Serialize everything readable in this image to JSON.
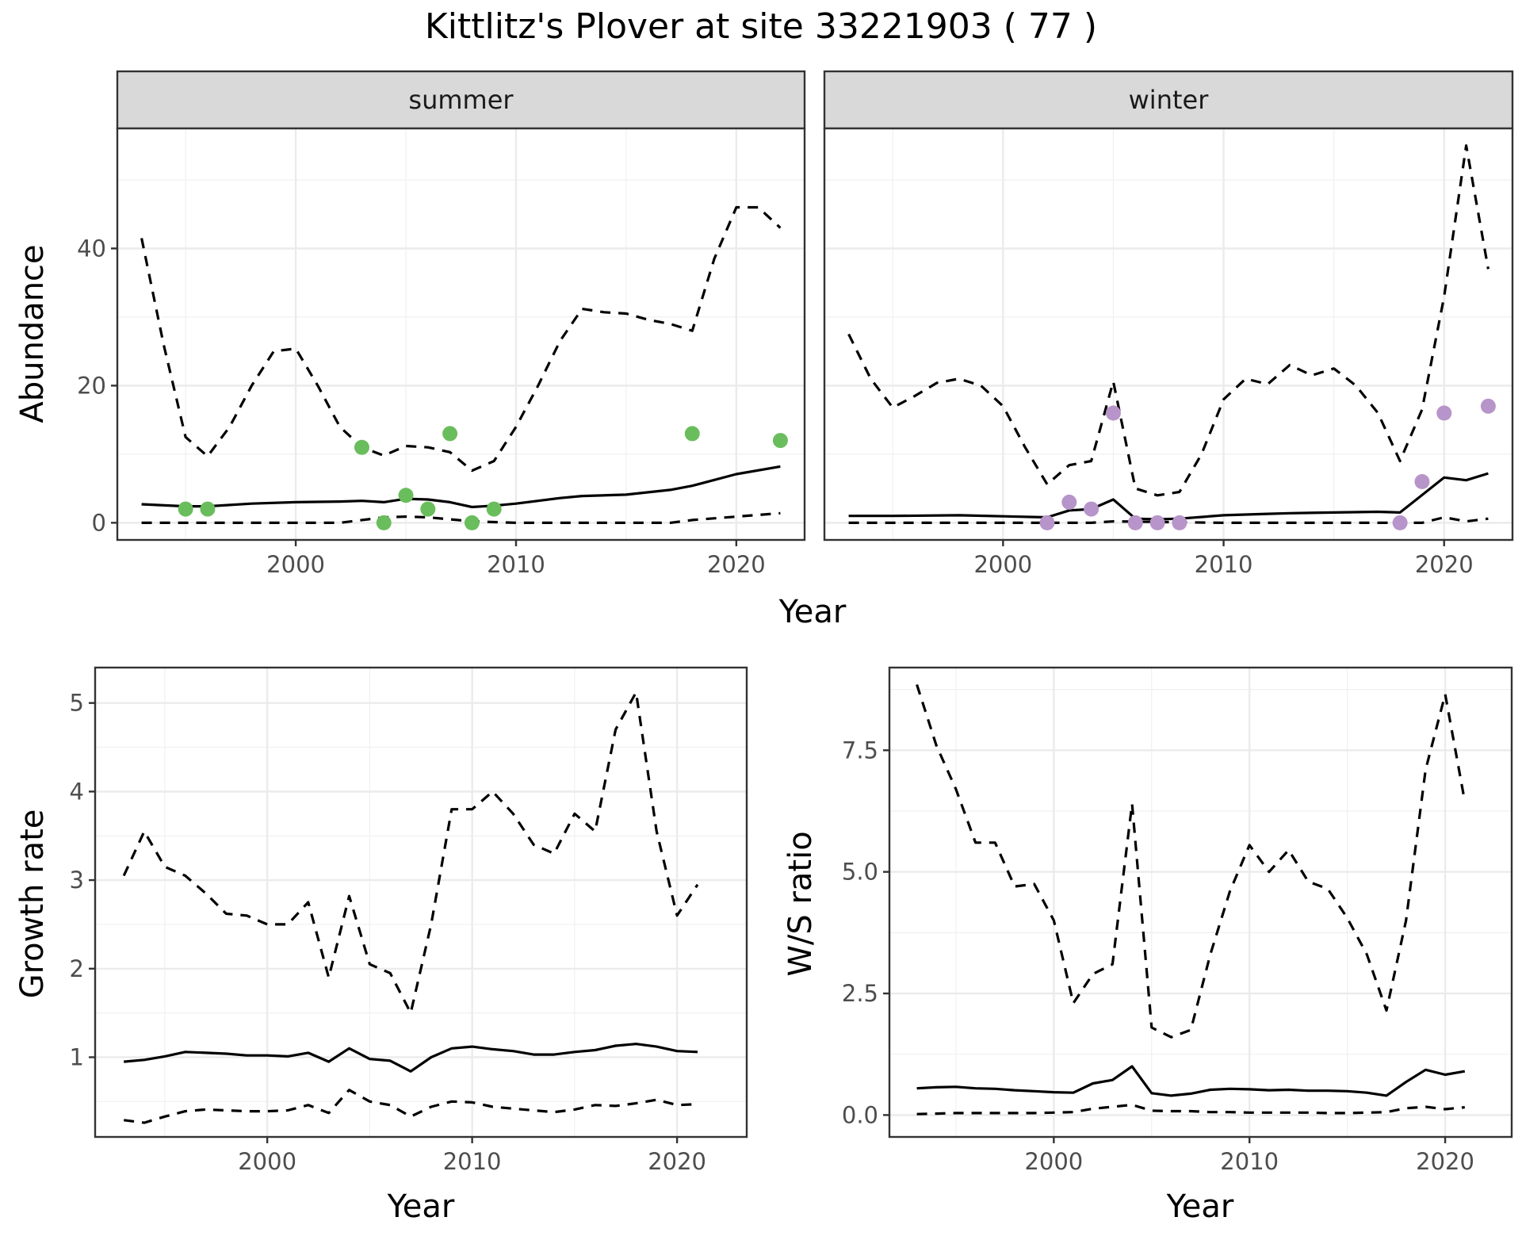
{
  "title": "Kittlitz's Plover at site 33221903 ( 77 )",
  "shared_xlabel": "Year",
  "colors": {
    "summer_points": "#6abd5c",
    "winter_points": "#b794c9",
    "strip_fill": "#d9d9d9",
    "lines": "#000000"
  },
  "chart_data": [
    {
      "type": "line",
      "panel": "summer",
      "strip_label": "summer",
      "xlabel": "",
      "ylabel": "Abundance",
      "xlim": [
        1991.9,
        2023.1
      ],
      "ylim": [
        -2.5,
        57.5
      ],
      "x_ticks": [
        2000,
        2010,
        2020
      ],
      "y_ticks": [
        0,
        20,
        40
      ],
      "grid": true,
      "series": [
        {
          "role": "mean",
          "style": "solid",
          "x": [
            1993,
            1995,
            1996,
            1998,
            2000,
            2002,
            2003,
            2004,
            2005,
            2006,
            2007,
            2008,
            2009,
            2010,
            2012,
            2013,
            2015,
            2017,
            2018,
            2020,
            2022
          ],
          "y": [
            2.7,
            2.4,
            2.4,
            2.8,
            3.0,
            3.1,
            3.2,
            3.0,
            3.5,
            3.4,
            3.0,
            2.3,
            2.5,
            2.8,
            3.6,
            3.9,
            4.1,
            4.8,
            5.4,
            7.1,
            8.2
          ]
        },
        {
          "role": "upper",
          "style": "dashed",
          "x": [
            1993,
            1994,
            1995,
            1996,
            1997,
            1998,
            1999,
            2000,
            2001,
            2002,
            2003,
            2004,
            2005,
            2006,
            2007,
            2008,
            2009,
            2010,
            2011,
            2012,
            2013,
            2014,
            2015,
            2016,
            2017,
            2018,
            2019,
            2020,
            2021,
            2022
          ],
          "y": [
            41.5,
            26,
            12.5,
            9.7,
            14,
            20,
            25,
            25.4,
            20,
            14,
            11,
            9.8,
            11.2,
            11,
            10.3,
            7.6,
            9,
            14,
            20,
            26.5,
            31.2,
            30.7,
            30.5,
            29.6,
            29,
            28,
            38.5,
            46,
            46,
            43
          ]
        },
        {
          "role": "lower",
          "style": "dashed",
          "x": [
            1993,
            2002,
            2004,
            2005,
            2006,
            2007,
            2008,
            2010,
            2017,
            2018,
            2020,
            2022
          ],
          "y": [
            0,
            0,
            0.8,
            0.9,
            0.8,
            0.5,
            0.2,
            0,
            0,
            0.4,
            0.9,
            1.4
          ]
        }
      ],
      "points": {
        "x": [
          1995,
          1996,
          2003,
          2004,
          2005,
          2006,
          2007,
          2008,
          2009,
          2018,
          2022
        ],
        "y": [
          2,
          2,
          11,
          0,
          4,
          2,
          13,
          0,
          2,
          13,
          12
        ]
      }
    },
    {
      "type": "line",
      "panel": "winter",
      "strip_label": "winter",
      "xlabel": "",
      "ylabel": "",
      "xlim": [
        1991.9,
        2023.1
      ],
      "ylim": [
        -2.5,
        57.5
      ],
      "x_ticks": [
        2000,
        2010,
        2020
      ],
      "y_ticks": [
        0,
        20,
        40
      ],
      "grid": true,
      "series": [
        {
          "role": "mean",
          "style": "solid",
          "x": [
            1993,
            1995,
            1998,
            2002,
            2003,
            2004,
            2005,
            2006,
            2007,
            2008,
            2010,
            2012,
            2013,
            2015,
            2017,
            2018,
            2020,
            2021,
            2022
          ],
          "y": [
            1.0,
            1.0,
            1.1,
            0.8,
            1.8,
            2.0,
            3.4,
            0.6,
            0.5,
            0.6,
            1.1,
            1.3,
            1.4,
            1.5,
            1.6,
            1.5,
            6.6,
            6.2,
            7.2
          ]
        },
        {
          "role": "upper",
          "style": "dashed",
          "x": [
            1993,
            1994,
            1995,
            1996,
            1997,
            1998,
            1999,
            2000,
            2001,
            2002,
            2003,
            2004,
            2005,
            2006,
            2007,
            2008,
            2009,
            2010,
            2011,
            2012,
            2013,
            2014,
            2015,
            2016,
            2017,
            2018,
            2019,
            2020,
            2021,
            2022
          ],
          "y": [
            27.5,
            21,
            16.8,
            18.5,
            20.4,
            21,
            20,
            17,
            11,
            5.6,
            8.4,
            9,
            20.6,
            5,
            4,
            4.5,
            10,
            18,
            21,
            20.2,
            23,
            21.5,
            22.5,
            20,
            16,
            9,
            16.5,
            33,
            55,
            37
          ]
        },
        {
          "role": "lower",
          "style": "dashed",
          "x": [
            1993,
            2004,
            2005,
            2010,
            2019,
            2020,
            2021,
            2022
          ],
          "y": [
            0,
            0,
            0.2,
            0,
            0,
            0.8,
            0.2,
            0.6
          ]
        }
      ],
      "points": {
        "x": [
          2002,
          2003,
          2004,
          2005,
          2006,
          2007,
          2008,
          2018,
          2019,
          2020,
          2022
        ],
        "y": [
          0,
          3,
          2,
          16,
          0,
          0,
          0,
          0,
          6,
          16,
          17
        ]
      }
    },
    {
      "type": "line",
      "panel": "growth",
      "xlabel": "Year",
      "ylabel": "Growth rate",
      "xlim": [
        1991.6,
        2023.4
      ],
      "ylim": [
        0.1,
        5.4
      ],
      "x_ticks": [
        2000,
        2010,
        2020
      ],
      "y_ticks": [
        1,
        2,
        3,
        4,
        5
      ],
      "grid": true,
      "series": [
        {
          "role": "mean",
          "style": "solid",
          "x": [
            1993,
            1994,
            1995,
            1996,
            1997,
            1998,
            1999,
            2000,
            2001,
            2002,
            2003,
            2004,
            2005,
            2006,
            2007,
            2008,
            2009,
            2010,
            2011,
            2012,
            2013,
            2014,
            2015,
            2016,
            2017,
            2018,
            2019,
            2020,
            2021
          ],
          "y": [
            0.95,
            0.97,
            1.01,
            1.06,
            1.05,
            1.04,
            1.02,
            1.02,
            1.01,
            1.05,
            0.95,
            1.1,
            0.98,
            0.96,
            0.84,
            1.0,
            1.1,
            1.12,
            1.09,
            1.07,
            1.03,
            1.03,
            1.06,
            1.08,
            1.13,
            1.15,
            1.12,
            1.07,
            1.06
          ]
        },
        {
          "role": "upper",
          "style": "dashed",
          "x": [
            1993,
            1994,
            1995,
            1996,
            1997,
            1998,
            1999,
            2000,
            2001,
            2002,
            2003,
            2004,
            2005,
            2006,
            2007,
            2008,
            2009,
            2010,
            2011,
            2012,
            2013,
            2014,
            2015,
            2016,
            2017,
            2018,
            2019,
            2020,
            2021
          ],
          "y": [
            3.05,
            3.55,
            3.15,
            3.05,
            2.85,
            2.62,
            2.6,
            2.5,
            2.5,
            2.75,
            1.9,
            2.82,
            2.05,
            1.95,
            1.5,
            2.5,
            3.8,
            3.8,
            4.0,
            3.75,
            3.4,
            3.3,
            3.75,
            3.55,
            4.7,
            5.12,
            3.55,
            2.6,
            2.95
          ]
        },
        {
          "role": "lower",
          "style": "dashed",
          "x": [
            1993,
            1994,
            1995,
            1996,
            1997,
            1998,
            1999,
            2000,
            2001,
            2002,
            2003,
            2004,
            2005,
            2006,
            2007,
            2008,
            2009,
            2010,
            2011,
            2012,
            2013,
            2014,
            2015,
            2016,
            2017,
            2018,
            2019,
            2020,
            2021
          ],
          "y": [
            0.29,
            0.26,
            0.33,
            0.39,
            0.41,
            0.4,
            0.39,
            0.39,
            0.4,
            0.46,
            0.37,
            0.63,
            0.5,
            0.46,
            0.33,
            0.44,
            0.5,
            0.49,
            0.44,
            0.42,
            0.4,
            0.38,
            0.41,
            0.46,
            0.45,
            0.48,
            0.52,
            0.46,
            0.47
          ]
        }
      ]
    },
    {
      "type": "line",
      "panel": "ratio",
      "xlabel": "Year",
      "ylabel": "W/S ratio",
      "xlim": [
        1991.6,
        2023.4
      ],
      "ylim": [
        -0.45,
        9.2
      ],
      "x_ticks": [
        2000,
        2010,
        2020
      ],
      "y_ticks": [
        0.0,
        2.5,
        5.0,
        7.5
      ],
      "y_tick_labels": [
        "0.0",
        "2.5",
        "5.0",
        "7.5"
      ],
      "grid": true,
      "series": [
        {
          "role": "mean",
          "style": "solid",
          "x": [
            1993,
            1994,
            1995,
            1996,
            1997,
            1998,
            1999,
            2000,
            2001,
            2002,
            2003,
            2004,
            2005,
            2006,
            2007,
            2008,
            2009,
            2010,
            2011,
            2012,
            2013,
            2014,
            2015,
            2016,
            2017,
            2018,
            2019,
            2020,
            2021
          ],
          "y": [
            0.55,
            0.57,
            0.58,
            0.55,
            0.54,
            0.51,
            0.49,
            0.47,
            0.46,
            0.65,
            0.72,
            1.0,
            0.45,
            0.4,
            0.44,
            0.52,
            0.54,
            0.53,
            0.51,
            0.52,
            0.5,
            0.5,
            0.49,
            0.46,
            0.4,
            0.68,
            0.93,
            0.83,
            0.9
          ]
        },
        {
          "role": "upper",
          "style": "dashed",
          "x": [
            1993,
            1994,
            1995,
            1996,
            1997,
            1998,
            1999,
            2000,
            2001,
            2002,
            2003,
            2004,
            2005,
            2006,
            2007,
            2008,
            2009,
            2010,
            2011,
            2012,
            2013,
            2014,
            2015,
            2016,
            2017,
            2018,
            2019,
            2020,
            2021
          ],
          "y": [
            8.85,
            7.6,
            6.7,
            5.6,
            5.6,
            4.7,
            4.75,
            4.0,
            2.3,
            2.9,
            3.1,
            6.4,
            1.8,
            1.6,
            1.75,
            3.3,
            4.6,
            5.55,
            5.0,
            5.45,
            4.8,
            4.65,
            4.05,
            3.3,
            2.15,
            4.0,
            7.1,
            8.65,
            6.45
          ]
        },
        {
          "role": "lower",
          "style": "dashed",
          "x": [
            1993,
            1994,
            1995,
            1996,
            1997,
            1998,
            1999,
            2000,
            2001,
            2002,
            2003,
            2004,
            2005,
            2006,
            2007,
            2008,
            2009,
            2010,
            2011,
            2012,
            2013,
            2014,
            2015,
            2016,
            2017,
            2018,
            2019,
            2020,
            2021
          ],
          "y": [
            0.02,
            0.03,
            0.04,
            0.04,
            0.04,
            0.04,
            0.04,
            0.05,
            0.06,
            0.13,
            0.17,
            0.21,
            0.09,
            0.08,
            0.08,
            0.06,
            0.06,
            0.05,
            0.05,
            0.05,
            0.05,
            0.04,
            0.04,
            0.05,
            0.06,
            0.14,
            0.17,
            0.12,
            0.16
          ]
        }
      ]
    }
  ]
}
